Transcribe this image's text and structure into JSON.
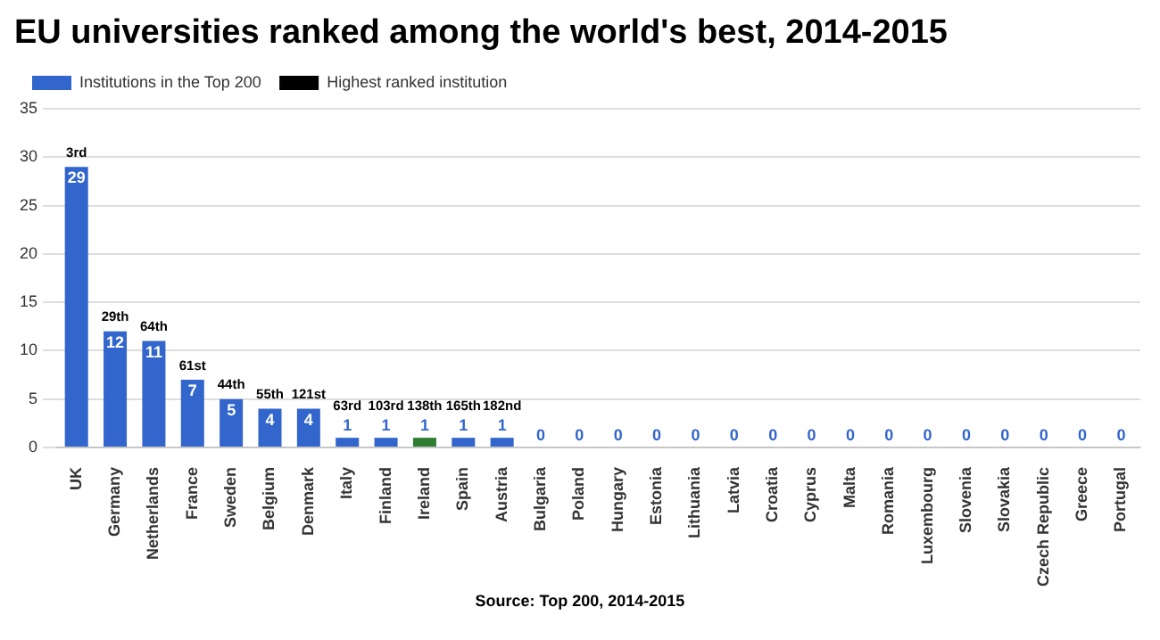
{
  "chart_data": {
    "type": "bar",
    "title": "EU universities ranked among the world's best, 2014-2015",
    "categories": [
      "UK",
      "Germany",
      "Netherlands",
      "France",
      "Sweden",
      "Belgium",
      "Denmark",
      "Italy",
      "Finland",
      "Ireland",
      "Spain",
      "Austria",
      "Bulgaria",
      "Poland",
      "Hungary",
      "Estonia",
      "Lithuania",
      "Latvia",
      "Croatia",
      "Cyprus",
      "Malta",
      "Romania",
      "Luxembourg",
      "Slovenia",
      "Slovakia",
      "Czech Republic",
      "Greece",
      "Portugal"
    ],
    "series": [
      {
        "name": "Institutions in the Top 200",
        "color": "#3366cc",
        "colors": [
          "#3366cc",
          "#3366cc",
          "#3366cc",
          "#3366cc",
          "#3366cc",
          "#3366cc",
          "#3366cc",
          "#3366cc",
          "#3366cc",
          "#2e7d32",
          "#3366cc",
          "#3366cc",
          "#3366cc",
          "#3366cc",
          "#3366cc",
          "#3366cc",
          "#3366cc",
          "#3366cc",
          "#3366cc",
          "#3366cc",
          "#3366cc",
          "#3366cc",
          "#3366cc",
          "#3366cc",
          "#3366cc",
          "#3366cc",
          "#3366cc",
          "#3366cc"
        ],
        "values": [
          29,
          12,
          11,
          7,
          5,
          4,
          4,
          1,
          1,
          1,
          1,
          1,
          0,
          0,
          0,
          0,
          0,
          0,
          0,
          0,
          0,
          0,
          0,
          0,
          0,
          0,
          0,
          0
        ]
      },
      {
        "name": "Highest ranked institution",
        "color": "#000000",
        "values": [
          null,
          null,
          null,
          null,
          null,
          null,
          null,
          null,
          null,
          null,
          null,
          null,
          null,
          null,
          null,
          null,
          null,
          null,
          null,
          null,
          null,
          null,
          null,
          null,
          null,
          null,
          null,
          null
        ]
      }
    ],
    "data_labels": true,
    "annotations": [
      {
        "text": "3rd",
        "x": "UK",
        "y": 29
      },
      {
        "text": "29th",
        "x": "Germany",
        "y": 12
      },
      {
        "text": "64th",
        "x": "Netherlands",
        "y": 11
      },
      {
        "text": "61st",
        "x": "France",
        "y": 7
      },
      {
        "text": "44th",
        "x": "Sweden",
        "y": 5
      },
      {
        "text": "55th",
        "x": "Belgium",
        "y": 4
      },
      {
        "text": "121st",
        "x": "Denmark",
        "y": 4
      },
      {
        "text": "63rd",
        "x": "Italy",
        "y": 1
      },
      {
        "text": "103rd",
        "x": "Finland",
        "y": 1
      },
      {
        "text": "138th",
        "x": "Ireland",
        "y": 1
      },
      {
        "text": "165th",
        "x": "Spain",
        "y": 1
      },
      {
        "text": "182nd",
        "x": "Austria",
        "y": 1
      },
      "Source: Top 200, 2014-2015"
    ],
    "ylim": [
      0,
      35
    ],
    "yticks": [
      0,
      5,
      10,
      15,
      20,
      25,
      30,
      35
    ],
    "grid": "y",
    "legend": "top left"
  }
}
